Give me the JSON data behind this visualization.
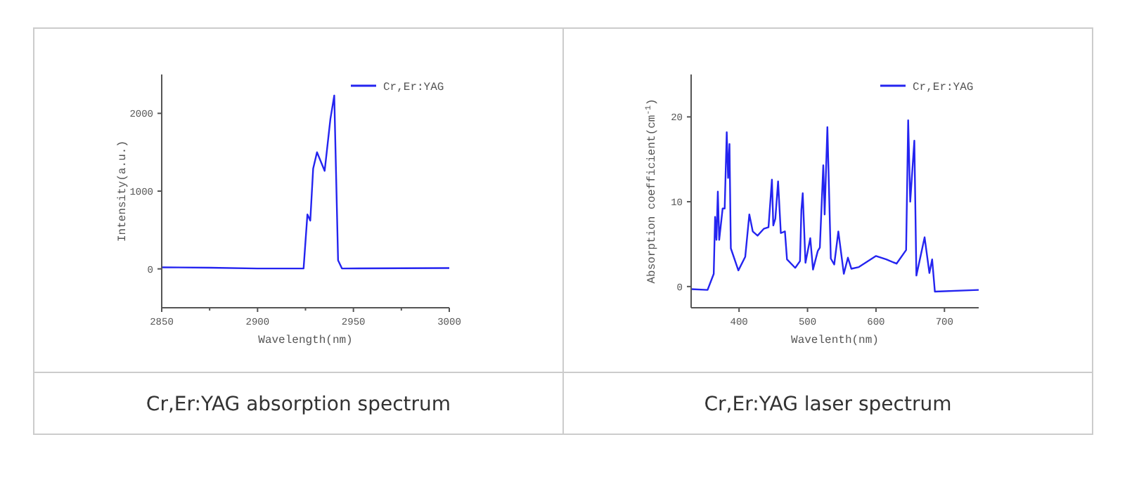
{
  "chart_data": [
    {
      "type": "line",
      "title": "Cr,Er:YAG absorption spectrum",
      "xlabel": "Wavelength(nm)",
      "ylabel": "Intensity(a.u.)",
      "xlim": [
        2850,
        3000
      ],
      "ylim": [
        -500,
        2500
      ],
      "xticks": [
        2850,
        {
          "value": 2875,
          "label": null
        },
        2900,
        {
          "value": 2925,
          "label": null
        },
        2950,
        {
          "value": 2975,
          "label": null
        },
        3000
      ],
      "yticks": [
        0,
        1000,
        2000
      ],
      "legend": "top right",
      "grid": false,
      "series": [
        {
          "name": "Cr,Er:YAG",
          "color": "#2424f0",
          "x": [
            2850,
            2875,
            2900,
            2924,
            2926,
            2927.5,
            2929,
            2931,
            2935,
            2938,
            2940,
            2942,
            2944,
            2975,
            3000
          ],
          "values": [
            20,
            15,
            5,
            5,
            700,
            620,
            1290,
            1500,
            1260,
            1930,
            2230,
            110,
            5,
            8,
            10
          ]
        }
      ]
    },
    {
      "type": "line",
      "title": "Cr,Er:YAG laser spectrum",
      "xlabel": "Wavelenth(nm)",
      "ylabel": "Absorption coefficient(cm$^{-1}$)",
      "xlim": [
        330,
        750
      ],
      "ylim": [
        -2.5,
        25
      ],
      "xticks": [
        400,
        500,
        600,
        700
      ],
      "yticks": [
        0,
        10,
        20
      ],
      "legend": "top right",
      "grid": false,
      "series": [
        {
          "name": "Cr,Er:YAG",
          "color": "#2424f0",
          "x": [
            330,
            354,
            363,
            365,
            367,
            369,
            371,
            376,
            379,
            382,
            384,
            386,
            388,
            399,
            409,
            415,
            420,
            427,
            436,
            443,
            448,
            450,
            453,
            457,
            461,
            467,
            470,
            482,
            489,
            491,
            493,
            497,
            504,
            508,
            515,
            518,
            523,
            525,
            529,
            534,
            539,
            545,
            553,
            559,
            564,
            575,
            600,
            615,
            630,
            644,
            647,
            650,
            656,
            659,
            671,
            678,
            682,
            686,
            750
          ],
          "values": [
            -0.3,
            -0.4,
            1.5,
            8.2,
            5.5,
            11.2,
            5.5,
            9.2,
            9.2,
            18.2,
            12.8,
            16.8,
            4.5,
            1.9,
            3.5,
            8.5,
            6.5,
            6,
            6.8,
            7,
            12.6,
            7.2,
            8,
            12.4,
            6.3,
            6.5,
            3.2,
            2.2,
            3,
            9,
            11,
            2.8,
            5.7,
            2,
            4.2,
            4.6,
            14.3,
            8.5,
            18.8,
            3.3,
            2.6,
            6.5,
            1.5,
            3.4,
            2.1,
            2.3,
            3.6,
            3.2,
            2.7,
            4.3,
            19.6,
            10,
            17.2,
            1.3,
            5.8,
            1.6,
            3.2,
            -0.6,
            -0.4
          ]
        }
      ]
    }
  ]
}
